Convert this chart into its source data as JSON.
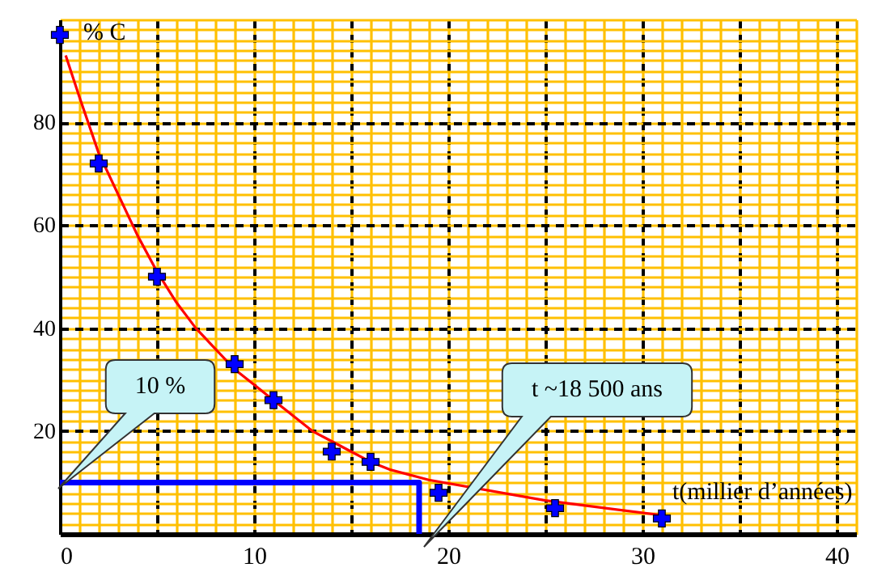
{
  "chart_data": {
    "type": "scatter",
    "xlabel": "t(millier d’années)",
    "ylabel": "% C",
    "xlim": [
      0,
      41
    ],
    "ylim": [
      0,
      100
    ],
    "xticks": [
      0,
      {
        "value": 5,
        "label": null
      },
      10,
      {
        "value": 15,
        "label": null
      },
      20,
      {
        "value": 25,
        "label": null
      },
      30,
      {
        "value": 35,
        "label": null
      },
      40
    ],
    "yticks": [
      20,
      40,
      60,
      80
    ],
    "grid": true,
    "marker": "cross",
    "annotations": [
      "10 %",
      "t ~18 500 ans"
    ],
    "series": [
      {
        "type": "line",
        "marker": "none",
        "color": "#ff0000",
        "x": [
          0.3,
          1,
          2,
          3,
          4,
          5,
          6,
          7,
          8,
          9,
          10,
          11,
          12,
          13,
          14,
          15,
          16,
          17,
          18,
          19,
          25,
          31.3
        ],
        "values": [
          93,
          85,
          74,
          66,
          58,
          51,
          45,
          40,
          36,
          32,
          29,
          26,
          23,
          20,
          18,
          16,
          14,
          12.5,
          11.5,
          10.5,
          6.5,
          3.5
        ]
      },
      {
        "color": "#0000ff",
        "x": [
          0,
          2,
          5,
          9,
          11,
          14,
          16,
          19.5,
          25.5,
          31
        ],
        "values": [
          97,
          72,
          50,
          33,
          26,
          16,
          14,
          8,
          5,
          3
        ]
      },
      {
        "type": "line",
        "marker": "none",
        "color": "#0000ff",
        "x": [
          0,
          18.5,
          18.5
        ],
        "values": [
          10,
          10,
          0
        ]
      }
    ]
  }
}
